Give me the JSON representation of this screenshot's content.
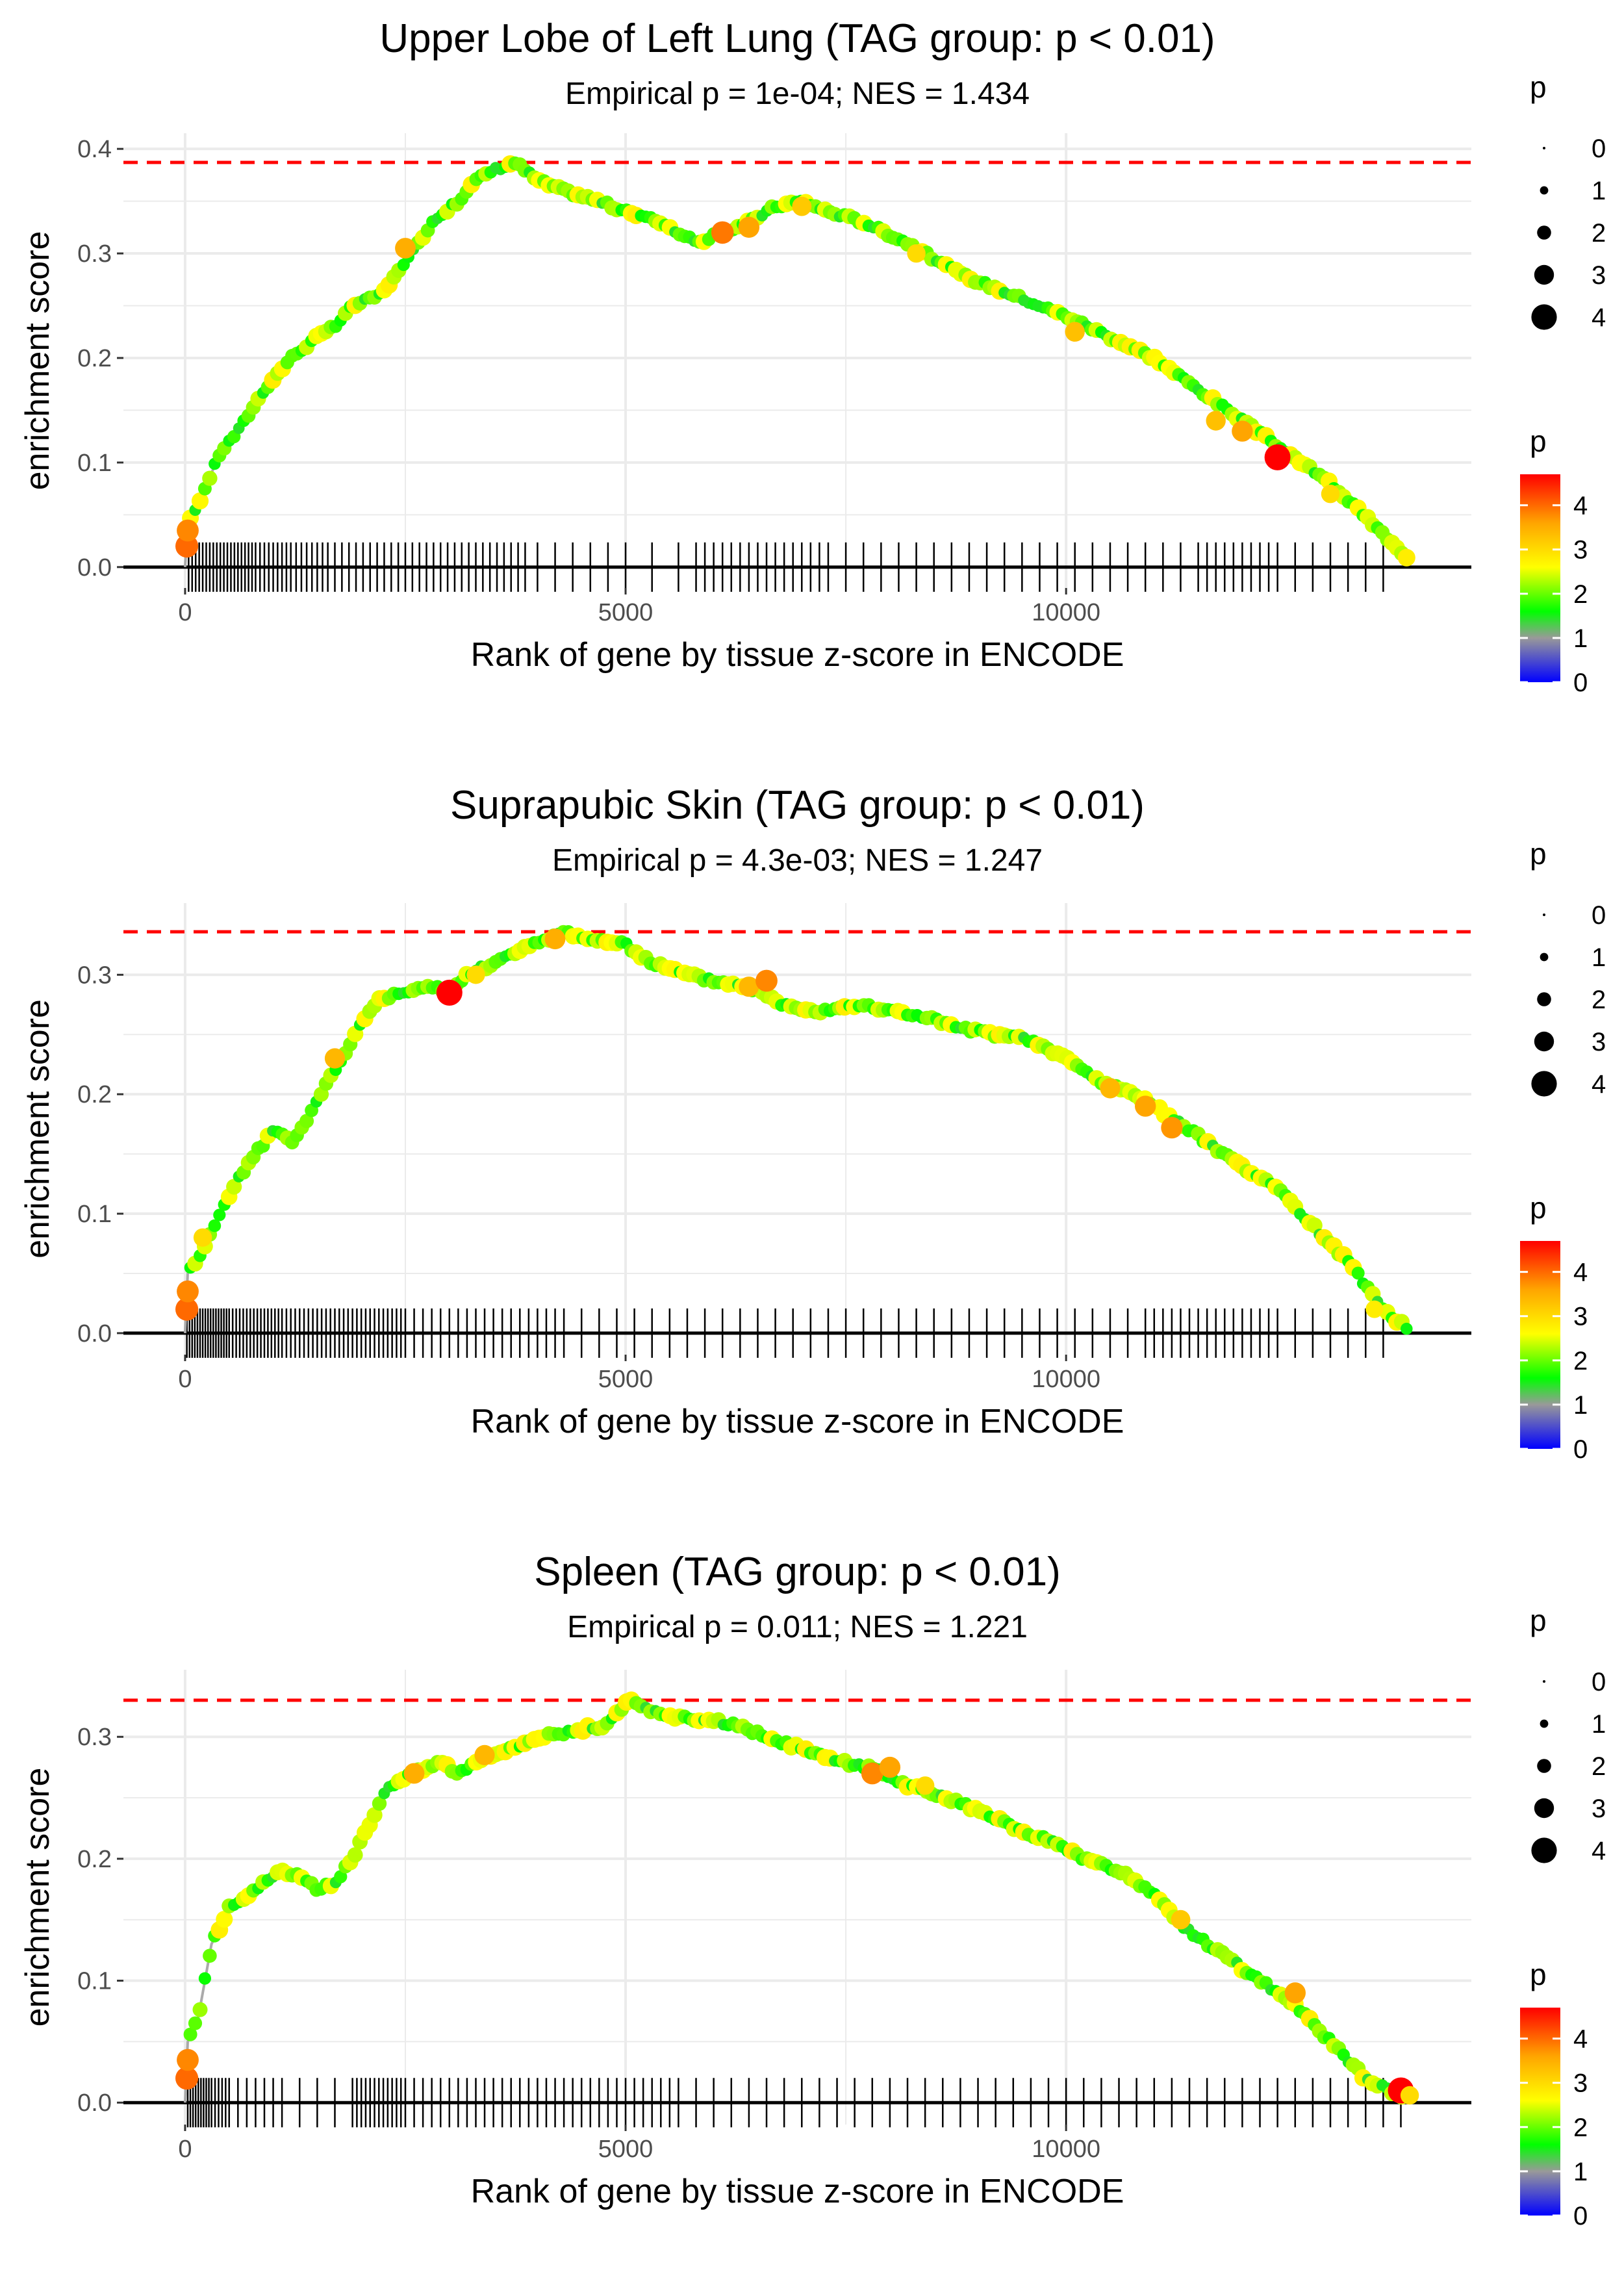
{
  "shared": {
    "xlabel": "Rank of gene by tissue z-score in ENCODE",
    "ylabel": "enrichment score",
    "x_ticks": [
      0,
      5000,
      10000
    ],
    "xlim": [
      -700,
      14600
    ],
    "n_genes": 13900,
    "size_legend": {
      "title": "p",
      "values": [
        0,
        1,
        2,
        3,
        4
      ]
    },
    "color_legend": {
      "title": "p",
      "values": [
        0,
        1,
        2,
        3,
        4
      ],
      "stops": [
        {
          "p": 0,
          "color": "#0000ff"
        },
        {
          "p": 1,
          "color": "#999999"
        },
        {
          "p": 1.6,
          "color": "#00ff00"
        },
        {
          "p": 2.6,
          "color": "#ffff00"
        },
        {
          "p": 3.6,
          "color": "#ffa500"
        },
        {
          "p": 4.7,
          "color": "#ff0000"
        }
      ]
    },
    "colors": {
      "max_line": "#ff0000",
      "curve": "#aaaaaa",
      "ticks": "#000000",
      "grid": "#ebebeb"
    }
  },
  "chart_data": [
    {
      "type": "line",
      "title": "Upper Lobe of Left Lung (TAG group: p < 0.01)",
      "subtitle": "Empirical p = 1e-04; NES = 1.434",
      "ylim": [
        -0.02,
        0.415
      ],
      "y_ticks": [
        0.0,
        0.1,
        0.2,
        0.3,
        0.4
      ],
      "y_tick_labels": [
        "0.0",
        "0.1",
        "0.2",
        "0.3",
        "0.4"
      ],
      "max_es": 0.387,
      "curve": [
        [
          0,
          0.0
        ],
        [
          30,
          0.04
        ],
        [
          200,
          0.07
        ],
        [
          400,
          0.11
        ],
        [
          600,
          0.13
        ],
        [
          900,
          0.17
        ],
        [
          1200,
          0.2
        ],
        [
          1500,
          0.22
        ],
        [
          1700,
          0.23
        ],
        [
          1900,
          0.25
        ],
        [
          2200,
          0.26
        ],
        [
          2500,
          0.29
        ],
        [
          2800,
          0.33
        ],
        [
          3100,
          0.35
        ],
        [
          3300,
          0.37
        ],
        [
          3500,
          0.38
        ],
        [
          3750,
          0.387
        ],
        [
          4000,
          0.37
        ],
        [
          4300,
          0.36
        ],
        [
          4700,
          0.35
        ],
        [
          5000,
          0.34
        ],
        [
          5400,
          0.33
        ],
        [
          5800,
          0.31
        ],
        [
          6100,
          0.32
        ],
        [
          6400,
          0.33
        ],
        [
          6700,
          0.345
        ],
        [
          7000,
          0.35
        ],
        [
          7300,
          0.34
        ],
        [
          7700,
          0.33
        ],
        [
          8200,
          0.31
        ],
        [
          8800,
          0.28
        ],
        [
          9400,
          0.26
        ],
        [
          10000,
          0.24
        ],
        [
          10500,
          0.22
        ],
        [
          11000,
          0.2
        ],
        [
          11500,
          0.17
        ],
        [
          12000,
          0.14
        ],
        [
          12500,
          0.11
        ],
        [
          13000,
          0.08
        ],
        [
          13500,
          0.04
        ],
        [
          13900,
          0.005
        ]
      ],
      "highlights": [
        [
          20,
          0.02,
          4.0
        ],
        [
          30,
          0.035,
          3.8
        ],
        [
          2500,
          0.305,
          3.5
        ],
        [
          6100,
          0.32,
          3.9
        ],
        [
          6400,
          0.325,
          3.6
        ],
        [
          7000,
          0.345,
          3.2
        ],
        [
          8300,
          0.3,
          3.0
        ],
        [
          10100,
          0.225,
          3.3
        ],
        [
          11700,
          0.14,
          3.3
        ],
        [
          12000,
          0.13,
          3.6
        ],
        [
          12400,
          0.105,
          4.7
        ],
        [
          13000,
          0.07,
          3.0
        ]
      ],
      "tick_ranks": [
        40,
        80,
        120,
        160,
        200,
        240,
        280,
        320,
        360,
        400,
        440,
        480,
        520,
        560,
        600,
        640,
        680,
        720,
        760,
        800,
        850,
        900,
        950,
        1000,
        1050,
        1100,
        1150,
        1200,
        1260,
        1320,
        1380,
        1440,
        1500,
        1560,
        1620,
        1700,
        1780,
        1860,
        1940,
        2020,
        2100,
        2180,
        2260,
        2340,
        2420,
        2500,
        2580,
        2660,
        2740,
        2820,
        2900,
        2980,
        3060,
        3140,
        3220,
        3300,
        3380,
        3460,
        3540,
        3620,
        3700,
        3780,
        3860,
        4000,
        4200,
        4400,
        4600,
        4800,
        5000,
        5300,
        5600,
        5800,
        5900,
        6000,
        6100,
        6200,
        6300,
        6400,
        6500,
        6600,
        6700,
        6800,
        6900,
        7000,
        7100,
        7200,
        7300,
        7500,
        7700,
        7900,
        8100,
        8300,
        8500,
        8700,
        8900,
        9100,
        9300,
        9500,
        9700,
        9900,
        10100,
        10300,
        10500,
        10700,
        10900,
        11100,
        11300,
        11500,
        11600,
        11700,
        11800,
        11900,
        12000,
        12100,
        12200,
        12300,
        12400,
        12600,
        12800,
        13000,
        13200,
        13400,
        13600
      ]
    },
    {
      "type": "line",
      "title": "Suprapubic Skin (TAG group: p < 0.01)",
      "subtitle": "Empirical p = 4.3e-03; NES = 1.247",
      "ylim": [
        -0.018,
        0.36
      ],
      "y_ticks": [
        0.0,
        0.1,
        0.2,
        0.3
      ],
      "y_tick_labels": [
        "0.0",
        "0.1",
        "0.2",
        "0.3"
      ],
      "max_es": 0.336,
      "curve": [
        [
          0,
          0.0
        ],
        [
          30,
          0.05
        ],
        [
          200,
          0.07
        ],
        [
          400,
          0.1
        ],
        [
          600,
          0.13
        ],
        [
          800,
          0.15
        ],
        [
          1000,
          0.17
        ],
        [
          1200,
          0.16
        ],
        [
          1400,
          0.18
        ],
        [
          1600,
          0.21
        ],
        [
          1800,
          0.23
        ],
        [
          2000,
          0.26
        ],
        [
          2200,
          0.28
        ],
        [
          2500,
          0.285
        ],
        [
          2800,
          0.29
        ],
        [
          3000,
          0.285
        ],
        [
          3200,
          0.3
        ],
        [
          3500,
          0.31
        ],
        [
          3800,
          0.32
        ],
        [
          4100,
          0.33
        ],
        [
          4300,
          0.336
        ],
        [
          4600,
          0.33
        ],
        [
          5000,
          0.325
        ],
        [
          5300,
          0.31
        ],
        [
          5700,
          0.3
        ],
        [
          6000,
          0.295
        ],
        [
          6400,
          0.29
        ],
        [
          6800,
          0.275
        ],
        [
          7200,
          0.27
        ],
        [
          7600,
          0.275
        ],
        [
          8000,
          0.27
        ],
        [
          8400,
          0.265
        ],
        [
          8800,
          0.255
        ],
        [
          9200,
          0.25
        ],
        [
          9600,
          0.245
        ],
        [
          10000,
          0.23
        ],
        [
          10400,
          0.21
        ],
        [
          10800,
          0.2
        ],
        [
          11200,
          0.18
        ],
        [
          11600,
          0.16
        ],
        [
          12000,
          0.14
        ],
        [
          12400,
          0.12
        ],
        [
          12800,
          0.09
        ],
        [
          13200,
          0.06
        ],
        [
          13600,
          0.02
        ],
        [
          13900,
          0.003
        ]
      ],
      "highlights": [
        [
          20,
          0.02,
          4.0
        ],
        [
          30,
          0.035,
          3.8
        ],
        [
          200,
          0.08,
          3.0
        ],
        [
          1700,
          0.23,
          3.4
        ],
        [
          3000,
          0.285,
          4.7
        ],
        [
          3300,
          0.3,
          3.0
        ],
        [
          4200,
          0.33,
          3.5
        ],
        [
          6400,
          0.29,
          3.4
        ],
        [
          6600,
          0.295,
          3.8
        ],
        [
          10500,
          0.205,
          3.4
        ],
        [
          10900,
          0.19,
          3.6
        ],
        [
          11200,
          0.172,
          3.7
        ],
        [
          13500,
          0.02,
          2.8
        ]
      ],
      "tick_ranks": [
        20,
        50,
        80,
        110,
        140,
        170,
        200,
        230,
        260,
        290,
        320,
        350,
        380,
        410,
        440,
        470,
        500,
        540,
        580,
        620,
        660,
        700,
        740,
        780,
        820,
        860,
        900,
        940,
        980,
        1020,
        1060,
        1100,
        1150,
        1200,
        1250,
        1300,
        1350,
        1400,
        1450,
        1500,
        1550,
        1600,
        1650,
        1700,
        1750,
        1800,
        1850,
        1900,
        1950,
        2000,
        2050,
        2100,
        2150,
        2200,
        2250,
        2300,
        2350,
        2400,
        2450,
        2500,
        2600,
        2700,
        2800,
        2900,
        3000,
        3100,
        3200,
        3300,
        3400,
        3500,
        3600,
        3700,
        3800,
        3900,
        4000,
        4100,
        4200,
        4300,
        4500,
        4700,
        4900,
        5100,
        5300,
        5500,
        5700,
        5900,
        6100,
        6300,
        6500,
        6700,
        6900,
        7100,
        7300,
        7500,
        7700,
        7900,
        8100,
        8300,
        8500,
        8700,
        8900,
        9100,
        9300,
        9500,
        9700,
        9900,
        10100,
        10300,
        10500,
        10700,
        10900,
        11000,
        11100,
        11200,
        11300,
        11400,
        11500,
        11600,
        11700,
        11800,
        11900,
        12000,
        12100,
        12200,
        12300,
        12400,
        12600,
        12800,
        13000,
        13200,
        13400,
        13600
      ]
    },
    {
      "type": "line",
      "title": "Spleen (TAG group: p < 0.01)",
      "subtitle": "Empirical p = 0.011; NES = 1.221",
      "ylim": [
        -0.018,
        0.355
      ],
      "y_ticks": [
        0.0,
        0.1,
        0.2,
        0.3
      ],
      "y_tick_labels": [
        "0.0",
        "0.1",
        "0.2",
        "0.3"
      ],
      "max_es": 0.33,
      "curve": [
        [
          0,
          0.0
        ],
        [
          30,
          0.05
        ],
        [
          150,
          0.07
        ],
        [
          300,
          0.13
        ],
        [
          500,
          0.16
        ],
        [
          700,
          0.17
        ],
        [
          900,
          0.18
        ],
        [
          1100,
          0.19
        ],
        [
          1300,
          0.185
        ],
        [
          1500,
          0.175
        ],
        [
          1700,
          0.18
        ],
        [
          1900,
          0.2
        ],
        [
          2100,
          0.23
        ],
        [
          2300,
          0.26
        ],
        [
          2600,
          0.27
        ],
        [
          2900,
          0.28
        ],
        [
          3100,
          0.27
        ],
        [
          3400,
          0.285
        ],
        [
          3700,
          0.29
        ],
        [
          4000,
          0.3
        ],
        [
          4400,
          0.305
        ],
        [
          4800,
          0.31
        ],
        [
          5050,
          0.33
        ],
        [
          5300,
          0.32
        ],
        [
          5600,
          0.315
        ],
        [
          5900,
          0.315
        ],
        [
          6200,
          0.31
        ],
        [
          6600,
          0.3
        ],
        [
          7000,
          0.29
        ],
        [
          7400,
          0.28
        ],
        [
          7800,
          0.275
        ],
        [
          8200,
          0.26
        ],
        [
          8600,
          0.25
        ],
        [
          9000,
          0.24
        ],
        [
          9400,
          0.225
        ],
        [
          9800,
          0.215
        ],
        [
          10200,
          0.2
        ],
        [
          10600,
          0.19
        ],
        [
          11000,
          0.17
        ],
        [
          11400,
          0.14
        ],
        [
          11800,
          0.12
        ],
        [
          12200,
          0.1
        ],
        [
          12600,
          0.08
        ],
        [
          13000,
          0.05
        ],
        [
          13400,
          0.02
        ],
        [
          13700,
          0.008
        ],
        [
          13900,
          0.005
        ]
      ],
      "highlights": [
        [
          20,
          0.02,
          4.0
        ],
        [
          30,
          0.035,
          3.8
        ],
        [
          2600,
          0.27,
          3.5
        ],
        [
          3400,
          0.285,
          3.4
        ],
        [
          7800,
          0.27,
          3.8
        ],
        [
          8000,
          0.275,
          3.6
        ],
        [
          8400,
          0.26,
          3.0
        ],
        [
          11300,
          0.15,
          3.2
        ],
        [
          12600,
          0.09,
          3.6
        ],
        [
          13800,
          0.01,
          4.7
        ],
        [
          13900,
          0.006,
          3.0
        ]
      ],
      "tick_ranks": [
        30,
        60,
        90,
        120,
        150,
        180,
        210,
        240,
        270,
        300,
        340,
        380,
        420,
        460,
        500,
        600,
        700,
        800,
        900,
        1000,
        1100,
        1300,
        1500,
        1700,
        1900,
        1950,
        2000,
        2050,
        2100,
        2150,
        2200,
        2250,
        2300,
        2350,
        2400,
        2450,
        2500,
        2600,
        2700,
        2800,
        2900,
        3000,
        3100,
        3200,
        3300,
        3400,
        3500,
        3600,
        3700,
        3800,
        3900,
        4000,
        4100,
        4200,
        4300,
        4400,
        4500,
        4600,
        4700,
        4800,
        4900,
        5000,
        5100,
        5200,
        5300,
        5400,
        5500,
        5600,
        5800,
        6000,
        6200,
        6400,
        6600,
        6800,
        7000,
        7200,
        7400,
        7600,
        7800,
        8000,
        8200,
        8400,
        8600,
        8800,
        9000,
        9200,
        9400,
        9600,
        9800,
        10000,
        10200,
        10400,
        10600,
        10800,
        11000,
        11200,
        11400,
        11600,
        11800,
        12000,
        12200,
        12400,
        12600,
        12800,
        13000,
        13200,
        13400,
        13600,
        13800
      ]
    }
  ]
}
